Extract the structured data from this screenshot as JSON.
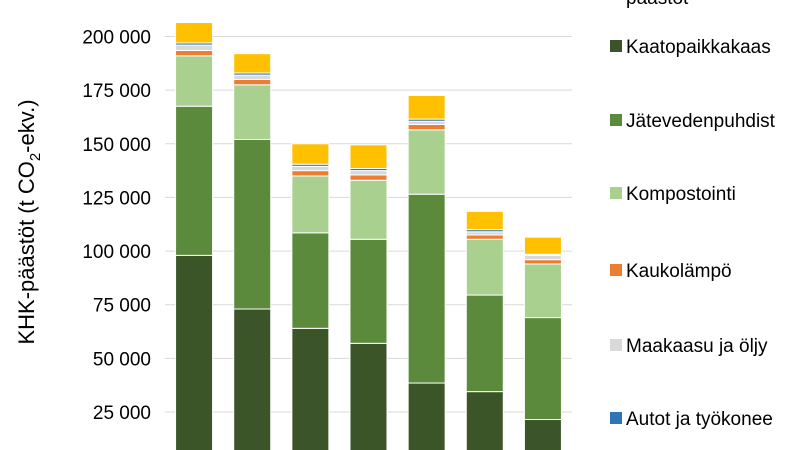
{
  "chart_data": {
    "type": "bar",
    "stacked": true,
    "ylabel_parts": [
      "KHK-päästöt (t CO",
      "2",
      "-ekv.)"
    ],
    "yticks": [
      "25 000",
      "50 000",
      "75 000",
      "100 000",
      "125 000",
      "150 000",
      "175 000",
      "200 000"
    ],
    "ytick_values": [
      25000,
      50000,
      75000,
      100000,
      125000,
      150000,
      175000,
      200000
    ],
    "ylim": [
      0,
      212000
    ],
    "grid": true,
    "legend_position": "right",
    "legend_title_fragment": "päästöt",
    "series": [
      {
        "name": "Kaatopaikkakaas",
        "color": "#3b5529",
        "values": [
          98000,
          73000,
          64000,
          57000,
          38500,
          34500,
          21500
        ]
      },
      {
        "name": "Jätevedenpuhdist",
        "color": "#5b8a3c",
        "values": [
          69500,
          79000,
          44500,
          48500,
          88000,
          45000,
          47500
        ]
      },
      {
        "name": "Kompostointi",
        "color": "#a9d08e",
        "values": [
          23500,
          25500,
          26500,
          27500,
          30000,
          26000,
          25000
        ]
      },
      {
        "name": "Kaukolämpö",
        "color": "#ed7d31",
        "values": [
          2500,
          2500,
          2500,
          2500,
          2500,
          2000,
          2000
        ]
      },
      {
        "name": "Maakaasu ja öljy",
        "color": "#d9d9d9",
        "values": [
          2500,
          2000,
          2000,
          2000,
          1500,
          1500,
          2000
        ]
      },
      {
        "name": "Autot ja työkonee",
        "color": "#2e75b6",
        "values": [
          1000,
          1000,
          1000,
          1000,
          1000,
          1000,
          500
        ]
      },
      {
        "name": "",
        "color": "#ffc000",
        "values": [
          9500,
          9000,
          9500,
          11000,
          11000,
          8500,
          8000
        ]
      }
    ]
  }
}
